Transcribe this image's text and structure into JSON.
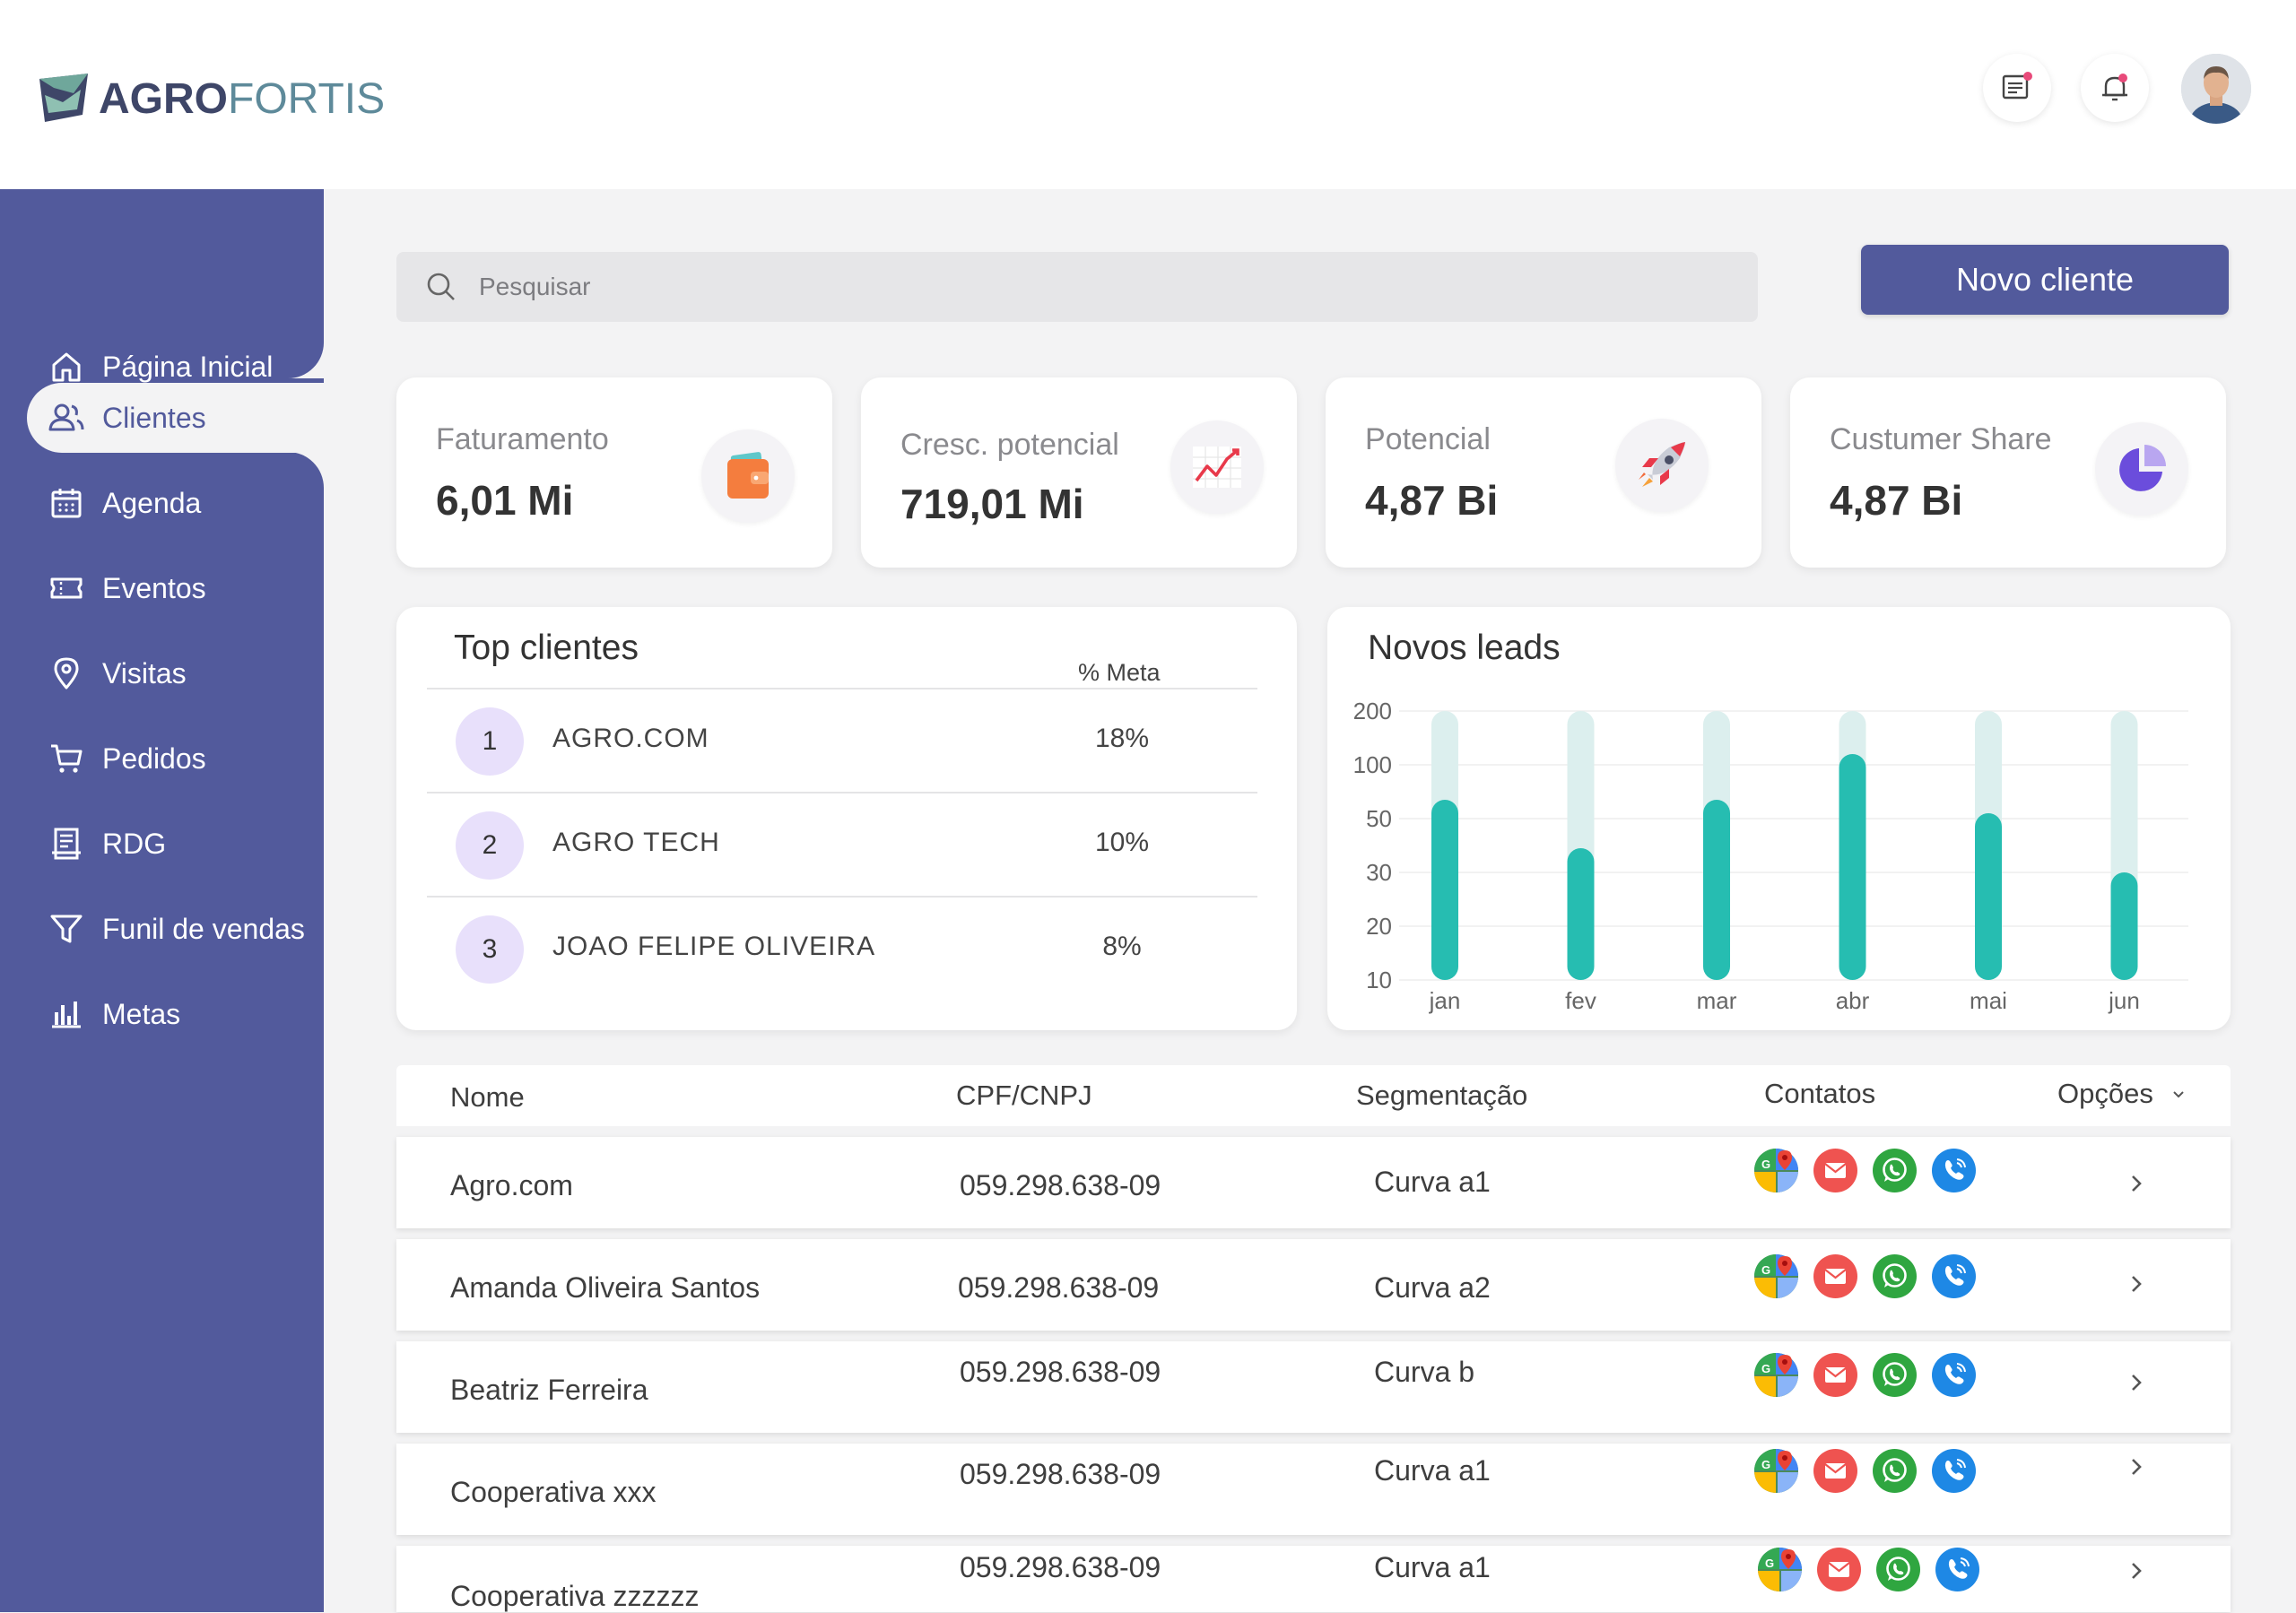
{
  "brand": {
    "name_bold": "AGRO",
    "name_light": "FORTIS"
  },
  "colors": {
    "primary": "#525a9c",
    "teal": "#26bdb1",
    "teal_light": "#dcefee",
    "lavender": "#e8e0fb"
  },
  "header_icons": [
    "chat-icon",
    "bell-icon",
    "user-avatar"
  ],
  "sidebar": {
    "items": [
      {
        "label": "Página Inicial",
        "icon": "home-icon"
      },
      {
        "label": "Clientes",
        "icon": "users-icon",
        "active": true
      },
      {
        "label": "Agenda",
        "icon": "calendar-icon"
      },
      {
        "label": "Eventos",
        "icon": "ticket-icon"
      },
      {
        "label": "Visitas",
        "icon": "map-pin-icon"
      },
      {
        "label": "Pedidos",
        "icon": "cart-icon"
      },
      {
        "label": "RDG",
        "icon": "receipt-icon"
      },
      {
        "label": "Funil de vendas",
        "icon": "funnel-icon"
      },
      {
        "label": "Metas",
        "icon": "bar-chart-icon"
      }
    ]
  },
  "search": {
    "placeholder": "Pesquisar"
  },
  "actions": {
    "new_client": "Novo cliente"
  },
  "kpis": [
    {
      "label": "Faturamento",
      "value": "6,01 Mi",
      "icon": "wallet-icon"
    },
    {
      "label": "Cresc. potencial",
      "value": "719,01 Mi",
      "icon": "trend-chart-icon"
    },
    {
      "label": "Potencial",
      "value": "4,87 Bi",
      "icon": "rocket-icon"
    },
    {
      "label": "Custumer Share",
      "value": "4,87 Bi",
      "icon": "pie-chart-icon"
    }
  ],
  "top_clients": {
    "title": "Top clientes",
    "meta_header": "% Meta",
    "rows": [
      {
        "rank": "1",
        "name": "AGRO.COM",
        "pct": "18%"
      },
      {
        "rank": "2",
        "name": "AGRO TECH",
        "pct": "10%"
      },
      {
        "rank": "3",
        "name": "JOAO FELIPE OLIVEIRA",
        "pct": "8%"
      }
    ]
  },
  "leads": {
    "title": "Novos leads"
  },
  "chart_data": {
    "type": "bar",
    "title": "Novos leads",
    "categories": [
      "jan",
      "fev",
      "mar",
      "abr",
      "mai",
      "jun"
    ],
    "y_ticks": [
      "200",
      "100",
      "50",
      "30",
      "20",
      "10"
    ],
    "values_fraction_of_axis": [
      0.67,
      0.49,
      0.67,
      0.84,
      0.62,
      0.4
    ],
    "grid": true
  },
  "table": {
    "headers": {
      "name": "Nome",
      "doc": "CPF/CNPJ",
      "segment": "Segmentação",
      "contacts": "Contatos",
      "options": "Opções"
    },
    "rows": [
      {
        "name": "Agro.com",
        "doc": "059.298.638-09",
        "segment": "Curva a1"
      },
      {
        "name": "Amanda Oliveira Santos",
        "doc": "059.298.638-09",
        "segment": "Curva a2"
      },
      {
        "name": "Beatriz Ferreira",
        "doc": "059.298.638-09",
        "segment": "Curva b"
      },
      {
        "name": "Cooperativa xxx",
        "doc": "059.298.638-09",
        "segment": "Curva a1"
      },
      {
        "name": "Cooperativa zzzzzz",
        "doc": "059.298.638-09",
        "segment": "Curva a1"
      }
    ],
    "contact_icons": [
      "maps-icon",
      "email-icon",
      "whatsapp-icon",
      "phone-icon"
    ]
  }
}
